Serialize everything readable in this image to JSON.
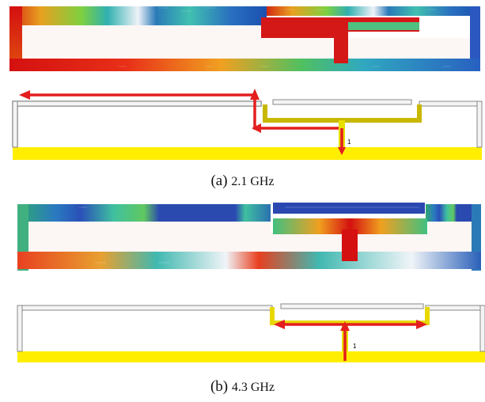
{
  "panel_a": {
    "caption_label": "(a)",
    "caption_freq": "2.1 GHz",
    "port_label": "1"
  },
  "panel_b": {
    "caption_label": "(b)",
    "caption_freq": "4.3 GHz",
    "port_label": "1"
  },
  "colors": {
    "arrow": "#e41e1e",
    "ground": "#ffee00",
    "current_high": "#d41010",
    "current_low": "#2a7ab8"
  }
}
